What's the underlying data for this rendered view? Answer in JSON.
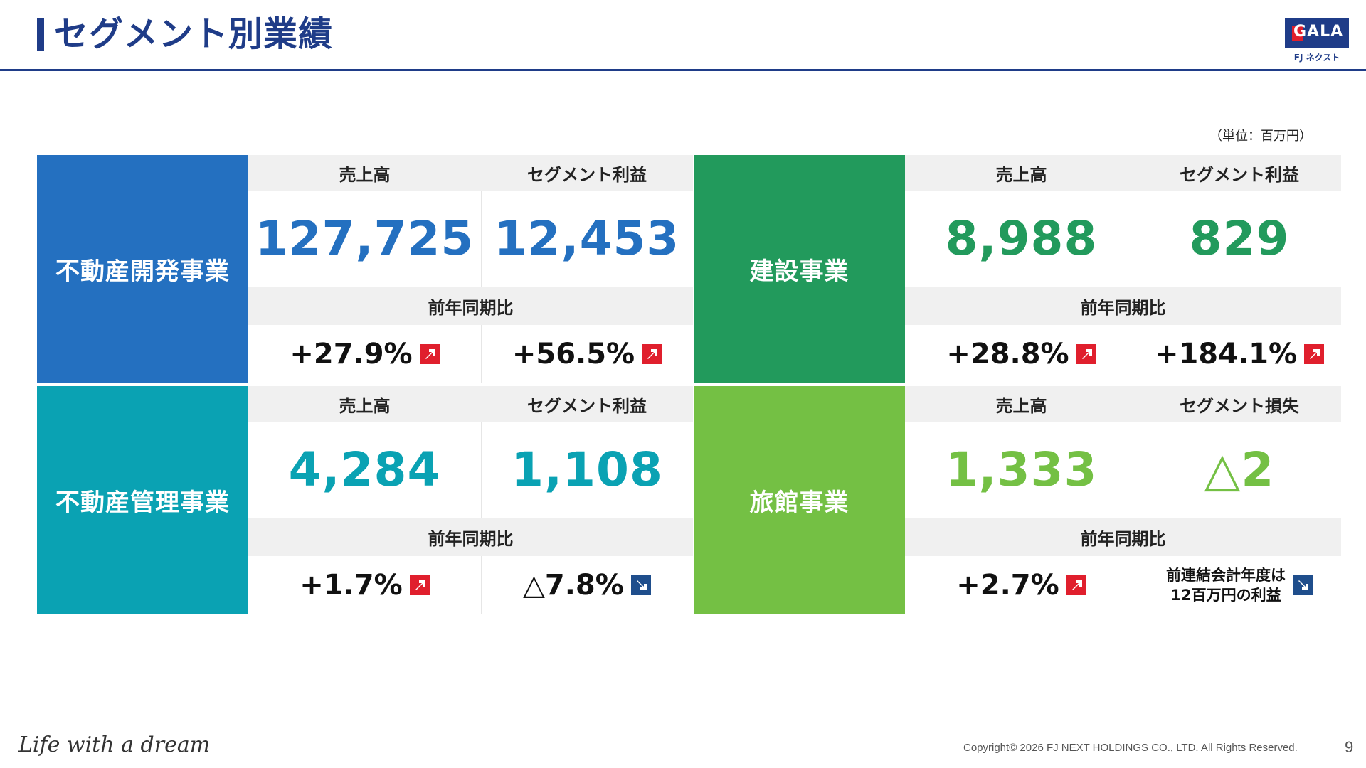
{
  "header": {
    "title": "セグメント別業績",
    "logo_text": "GALA",
    "logo_sub": "FJ ネクスト"
  },
  "unit": "（単位：百万円）",
  "colors": {
    "brand": "#1f3c88",
    "up_arrow": "#e01f2d",
    "down_arrow": "#1f4e8c"
  },
  "segments": [
    {
      "name": "不動産開発事業",
      "color": "#2470c0",
      "value_color": "#2470c0",
      "col1_label": "売上高",
      "col2_label": "セグメント利益",
      "col1_value": "127,725",
      "col2_value": "12,453",
      "yoy_label": "前年同期比",
      "col1_yoy": "+27.9%",
      "col1_dir": "up",
      "col2_yoy": "+56.5%",
      "col2_dir": "up"
    },
    {
      "name": "建設事業",
      "color": "#229a5c",
      "value_color": "#229a5c",
      "col1_label": "売上高",
      "col2_label": "セグメント利益",
      "col1_value": "8,988",
      "col2_value": "829",
      "yoy_label": "前年同期比",
      "col1_yoy": "+28.8%",
      "col1_dir": "up",
      "col2_yoy": "+184.1%",
      "col2_dir": "up"
    },
    {
      "name": "不動産管理事業",
      "color": "#0aa2b3",
      "value_color": "#0aa2b3",
      "col1_label": "売上高",
      "col2_label": "セグメント利益",
      "col1_value": "4,284",
      "col2_value": "1,108",
      "yoy_label": "前年同期比",
      "col1_yoy": "+1.7%",
      "col1_dir": "up",
      "col2_yoy": "△7.8%",
      "col2_dir": "down"
    },
    {
      "name": "旅館事業",
      "color": "#74c044",
      "value_color": "#74c044",
      "col1_label": "売上高",
      "col2_label": "セグメント損失",
      "col1_value": "1,333",
      "col2_value": "△2",
      "yoy_label": "前年同期比",
      "col1_yoy": "+2.7%",
      "col1_dir": "up",
      "col2_note_line1": "前連結会計年度は",
      "col2_note_line2": "12百万円の利益",
      "col2_dir": "down"
    }
  ],
  "footer": {
    "tagline": "Life with a dream",
    "copyright": "Copyright© 2026 FJ NEXT HOLDINGS CO., LTD. All Rights Reserved.",
    "page": "9"
  }
}
